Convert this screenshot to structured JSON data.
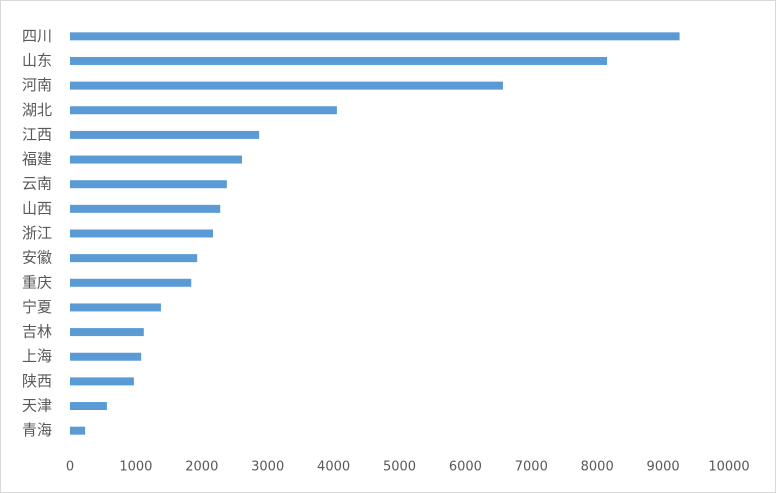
{
  "chart_data": {
    "type": "bar",
    "orientation": "horizontal",
    "categories": [
      "四川",
      "山东",
      "河南",
      "湖北",
      "江西",
      "福建",
      "云南",
      "山西",
      "浙江",
      "安徽",
      "重庆",
      "宁夏",
      "吉林",
      "上海",
      "陕西",
      "天津",
      "青海"
    ],
    "values": [
      9250,
      8150,
      6570,
      4050,
      2870,
      2610,
      2380,
      2280,
      2170,
      1930,
      1840,
      1380,
      1120,
      1080,
      970,
      560,
      230
    ],
    "color": "#5b9bd5",
    "xlim": [
      0,
      10000
    ],
    "xticks": [
      0,
      1000,
      2000,
      3000,
      4000,
      5000,
      6000,
      7000,
      8000,
      9000,
      10000
    ],
    "grid": false
  }
}
